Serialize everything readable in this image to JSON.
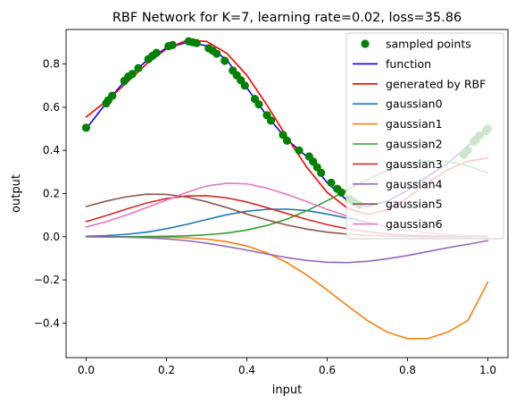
{
  "chart_data": {
    "type": "line",
    "title": "RBF Network for K=7, learning rate=0.02, loss=35.86",
    "xlabel": "input",
    "ylabel": "output",
    "xlim": [
      -0.05,
      1.05
    ],
    "ylim": [
      -0.56,
      0.96
    ],
    "xticks": [
      0.0,
      0.2,
      0.4,
      0.6,
      0.8,
      1.0
    ],
    "xtick_labels": [
      "0.0",
      "0.2",
      "0.4",
      "0.6",
      "0.8",
      "1.0"
    ],
    "yticks": [
      -0.4,
      -0.2,
      0.0,
      0.2,
      0.4,
      0.6,
      0.8
    ],
    "ytick_labels": [
      "−0.4",
      "−0.2",
      "0.0",
      "0.2",
      "0.4",
      "0.6",
      "0.8"
    ],
    "grid": false,
    "legend_position": "top-right",
    "legend": [
      {
        "label": "sampled points",
        "color": "#008000",
        "kind": "marker"
      },
      {
        "label": "function",
        "color": "#0000ff",
        "kind": "line"
      },
      {
        "label": "generated by RBF",
        "color": "#ff0000",
        "kind": "line"
      },
      {
        "label": "gaussian0",
        "color": "#1f77b4",
        "kind": "line"
      },
      {
        "label": "gaussian1",
        "color": "#ff7f0e",
        "kind": "line"
      },
      {
        "label": "gaussian2",
        "color": "#2ca02c",
        "kind": "line"
      },
      {
        "label": "gaussian3",
        "color": "#d62728",
        "kind": "line"
      },
      {
        "label": "gaussian4",
        "color": "#9467bd",
        "kind": "line"
      },
      {
        "label": "gaussian5",
        "color": "#8c564b",
        "kind": "line"
      },
      {
        "label": "gaussian6",
        "color": "#e377c2",
        "kind": "line"
      }
    ],
    "sampled_points": {
      "x": [
        0.0,
        0.05,
        0.055,
        0.065,
        0.095,
        0.105,
        0.115,
        0.13,
        0.155,
        0.165,
        0.175,
        0.205,
        0.215,
        0.255,
        0.265,
        0.275,
        0.305,
        0.315,
        0.325,
        0.345,
        0.365,
        0.375,
        0.385,
        0.395,
        0.42,
        0.43,
        0.45,
        0.46,
        0.49,
        0.5,
        0.53,
        0.555,
        0.565,
        0.575,
        0.585,
        0.61,
        0.625,
        0.635,
        0.655,
        0.665,
        0.68,
        0.94,
        0.95,
        0.965,
        0.97,
        0.98,
        0.995,
        1.0
      ],
      "y": [
        0.505,
        0.618,
        0.632,
        0.653,
        0.722,
        0.742,
        0.754,
        0.781,
        0.823,
        0.838,
        0.852,
        0.883,
        0.888,
        0.905,
        0.901,
        0.897,
        0.873,
        0.862,
        0.848,
        0.815,
        0.77,
        0.748,
        0.725,
        0.7,
        0.638,
        0.613,
        0.563,
        0.538,
        0.472,
        0.445,
        0.4,
        0.372,
        0.348,
        0.322,
        0.296,
        0.25,
        0.222,
        0.205,
        0.175,
        0.162,
        0.148,
        0.38,
        0.4,
        0.44,
        0.45,
        0.47,
        0.49,
        0.5
      ]
    },
    "series": [
      {
        "name": "function",
        "color": "#0000ff",
        "width": 1.6,
        "x": [
          0.0,
          0.05,
          0.1,
          0.15,
          0.2,
          0.25,
          0.3,
          0.35,
          0.4,
          0.45,
          0.5,
          0.55,
          0.6,
          0.65,
          0.7,
          0.75,
          0.8,
          0.85,
          0.9,
          0.95,
          1.0
        ],
        "y": [
          0.5,
          0.62,
          0.73,
          0.815,
          0.875,
          0.9,
          0.885,
          0.82,
          0.69,
          0.56,
          0.45,
          0.37,
          0.25,
          0.168,
          0.14,
          0.165,
          0.215,
          0.28,
          0.34,
          0.42,
          0.5
        ]
      },
      {
        "name": "generated by RBF",
        "color": "#ff0000",
        "width": 1.6,
        "x": [
          0.0,
          0.05,
          0.1,
          0.15,
          0.2,
          0.25,
          0.3,
          0.35,
          0.4,
          0.45,
          0.5,
          0.55,
          0.6,
          0.65,
          0.7,
          0.75,
          0.8,
          0.85,
          0.9,
          0.95,
          1.0
        ],
        "y": [
          0.555,
          0.628,
          0.712,
          0.8,
          0.87,
          0.91,
          0.905,
          0.85,
          0.748,
          0.61,
          0.46,
          0.32,
          0.205,
          0.133,
          0.103,
          0.125,
          0.18,
          0.25,
          0.31,
          0.35,
          0.365
        ]
      },
      {
        "name": "gaussian0",
        "color": "#1f77b4",
        "width": 1.6,
        "x": [
          0.0,
          0.05,
          0.1,
          0.15,
          0.2,
          0.25,
          0.3,
          0.35,
          0.4,
          0.45,
          0.5,
          0.55,
          0.6,
          0.65,
          0.7,
          0.75,
          0.8,
          0.85,
          0.9,
          0.95,
          1.0
        ],
        "y": [
          0.002,
          0.005,
          0.011,
          0.021,
          0.037,
          0.057,
          0.08,
          0.102,
          0.118,
          0.127,
          0.128,
          0.121,
          0.105,
          0.086,
          0.066,
          0.046,
          0.03,
          0.018,
          0.01,
          0.005,
          0.003
        ]
      },
      {
        "name": "gaussian1",
        "color": "#ff7f0e",
        "width": 1.6,
        "x": [
          0.0,
          0.05,
          0.1,
          0.15,
          0.2,
          0.25,
          0.3,
          0.35,
          0.4,
          0.45,
          0.5,
          0.55,
          0.6,
          0.65,
          0.7,
          0.75,
          0.8,
          0.85,
          0.9,
          0.95,
          1.0
        ],
        "y": [
          0.0,
          -0.0,
          -0.0,
          -0.001,
          -0.002,
          -0.005,
          -0.011,
          -0.023,
          -0.043,
          -0.075,
          -0.12,
          -0.178,
          -0.247,
          -0.319,
          -0.388,
          -0.442,
          -0.472,
          -0.472,
          -0.442,
          -0.388,
          -0.21
        ]
      },
      {
        "name": "gaussian2",
        "color": "#2ca02c",
        "width": 1.6,
        "x": [
          0.0,
          0.05,
          0.1,
          0.15,
          0.2,
          0.25,
          0.3,
          0.35,
          0.4,
          0.45,
          0.5,
          0.55,
          0.6,
          0.65,
          0.7,
          0.75,
          0.8,
          0.85,
          0.9,
          0.95,
          1.0
        ],
        "y": [
          0.0,
          0.0,
          0.0,
          0.001,
          0.002,
          0.004,
          0.009,
          0.017,
          0.031,
          0.052,
          0.082,
          0.121,
          0.167,
          0.217,
          0.265,
          0.307,
          0.337,
          0.352,
          0.349,
          0.329,
          0.295
        ]
      },
      {
        "name": "gaussian3",
        "color": "#d62728",
        "width": 1.6,
        "x": [
          0.0,
          0.05,
          0.1,
          0.15,
          0.2,
          0.25,
          0.3,
          0.35,
          0.4,
          0.45,
          0.5,
          0.55,
          0.6,
          0.65,
          0.7,
          0.75,
          0.8,
          0.85,
          0.9,
          0.95,
          1.0
        ],
        "y": [
          0.07,
          0.098,
          0.128,
          0.156,
          0.177,
          0.189,
          0.19,
          0.18,
          0.161,
          0.135,
          0.107,
          0.08,
          0.056,
          0.037,
          0.023,
          0.013,
          0.007,
          0.004,
          0.002,
          0.001,
          0.0
        ]
      },
      {
        "name": "gaussian4",
        "color": "#9467bd",
        "width": 1.6,
        "x": [
          0.0,
          0.05,
          0.1,
          0.15,
          0.2,
          0.25,
          0.3,
          0.35,
          0.4,
          0.45,
          0.5,
          0.55,
          0.6,
          0.65,
          0.7,
          0.75,
          0.8,
          0.85,
          0.9,
          0.95,
          1.0
        ],
        "y": [
          -0.0,
          -0.001,
          -0.002,
          -0.005,
          -0.01,
          -0.018,
          -0.03,
          -0.045,
          -0.062,
          -0.08,
          -0.097,
          -0.11,
          -0.118,
          -0.12,
          -0.114,
          -0.102,
          -0.087,
          -0.069,
          -0.051,
          -0.035,
          -0.018
        ]
      },
      {
        "name": "gaussian5",
        "color": "#8c564b",
        "width": 1.6,
        "x": [
          0.0,
          0.05,
          0.1,
          0.15,
          0.2,
          0.25,
          0.3,
          0.35,
          0.4,
          0.45,
          0.5,
          0.55,
          0.6,
          0.65,
          0.7,
          0.75,
          0.8,
          0.85,
          0.9,
          0.95,
          1.0
        ],
        "y": [
          0.14,
          0.165,
          0.185,
          0.197,
          0.196,
          0.184,
          0.162,
          0.135,
          0.105,
          0.078,
          0.054,
          0.035,
          0.021,
          0.012,
          0.006,
          0.003,
          0.001,
          0.0,
          0.0,
          0.0,
          0.0
        ]
      },
      {
        "name": "gaussian6",
        "color": "#e377c2",
        "width": 1.6,
        "x": [
          0.0,
          0.05,
          0.1,
          0.15,
          0.2,
          0.25,
          0.3,
          0.35,
          0.4,
          0.45,
          0.5,
          0.55,
          0.6,
          0.65,
          0.7,
          0.75,
          0.8,
          0.85,
          0.9,
          0.95,
          1.0
        ],
        "y": [
          0.045,
          0.07,
          0.1,
          0.135,
          0.17,
          0.205,
          0.235,
          0.248,
          0.245,
          0.225,
          0.196,
          0.162,
          0.127,
          0.095,
          0.068,
          0.046,
          0.03,
          0.018,
          0.01,
          0.006,
          0.003
        ]
      }
    ]
  }
}
